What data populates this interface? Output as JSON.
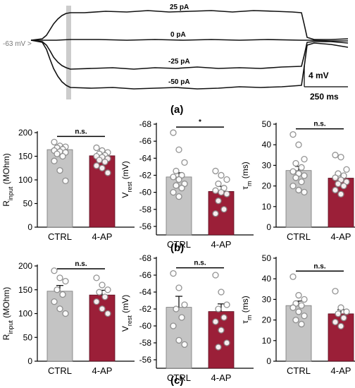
{
  "colors": {
    "ctrl_bar": "#c4c4c4",
    "ap_bar": "#9b1f38",
    "stim_band": "#cccccc"
  },
  "panel_a": {
    "label": "(a)",
    "baseline_label": "-63 mV >",
    "current_labels": [
      "25 pA",
      "0 pA",
      "-25 pA",
      "-50 pA"
    ],
    "scale_v_label": "4 mV",
    "scale_t_label": "250 ms"
  },
  "panel_b": {
    "label": "(b)"
  },
  "panel_c": {
    "label": "(c)"
  },
  "chart_data": [
    {
      "type": "bar",
      "id": "b1",
      "categories": [
        "CTRL",
        "4-AP"
      ],
      "values": [
        164,
        151
      ],
      "errors": [
        8,
        9
      ],
      "ylabel_main": "R",
      "ylabel_sub": "input",
      "ylabel_unit": " (MOhm)",
      "ylim": [
        0,
        200
      ],
      "yticks": [
        0,
        50,
        100,
        150,
        200
      ],
      "yinverted": false,
      "significance": "n.s.",
      "points": [
        [
          180,
          172,
          170,
          168,
          165,
          162,
          160,
          158,
          155,
          150,
          140,
          120,
          98
        ],
        [
          168,
          162,
          158,
          155,
          152,
          150,
          148,
          145,
          142,
          138,
          130,
          125,
          115
        ]
      ]
    },
    {
      "type": "bar",
      "id": "b2",
      "categories": [
        "CTRL",
        "4-AP"
      ],
      "values": [
        -61.8,
        -60.1
      ],
      "errors": [
        0.5,
        0.6
      ],
      "ylabel_main": "V",
      "ylabel_sub": "rest",
      "ylabel_unit": " (mV)",
      "ylim": [
        -55,
        -68
      ],
      "yticks": [
        -56,
        -58,
        -60,
        -62,
        -64,
        -66,
        -68
      ],
      "yinverted": true,
      "significance": "*",
      "points": [
        [
          -67,
          -65,
          -63.5,
          -62.5,
          -62,
          -61.8,
          -61.5,
          -61,
          -60.8,
          -60.5,
          -60,
          -59.5
        ],
        [
          -62.5,
          -62,
          -61.5,
          -61,
          -60.5,
          -60.2,
          -60,
          -59.8,
          -59,
          -58,
          -57.5
        ]
      ]
    },
    {
      "type": "bar",
      "id": "b3",
      "categories": [
        "CTRL",
        "4-AP"
      ],
      "values": [
        27.5,
        23.8
      ],
      "errors": [
        2,
        1.5
      ],
      "ylabel_main": "τ",
      "ylabel_sub": "m",
      "ylabel_unit": " (ms)",
      "ylim": [
        0,
        50
      ],
      "yticks": [
        0,
        10,
        20,
        30,
        40,
        50
      ],
      "yinverted": false,
      "significance": "n.s.",
      "points": [
        [
          45,
          40,
          33,
          31,
          29,
          27,
          26,
          25,
          24,
          22,
          20,
          18,
          17
        ],
        [
          35,
          34,
          28,
          26,
          25,
          24,
          23,
          22,
          21,
          20,
          18,
          16
        ]
      ]
    },
    {
      "type": "bar",
      "id": "c1",
      "categories": [
        "CTRL",
        "4-AP"
      ],
      "values": [
        147,
        139
      ],
      "errors": [
        12,
        10
      ],
      "ylabel_main": "R",
      "ylabel_sub": "input",
      "ylabel_unit": " (MOhm)",
      "ylim": [
        0,
        200
      ],
      "yticks": [
        0,
        50,
        100,
        150,
        200
      ],
      "yinverted": false,
      "significance": "n.s.",
      "points": [
        [
          190,
          175,
          168,
          150,
          140,
          125,
          110,
          100
        ],
        [
          175,
          160,
          150,
          145,
          135,
          125,
          110,
          100
        ]
      ]
    },
    {
      "type": "bar",
      "id": "c2",
      "categories": [
        "CTRL",
        "4-AP"
      ],
      "values": [
        -62.2,
        -61.7
      ],
      "errors": [
        1.3,
        0.9
      ],
      "ylabel_main": "V",
      "ylabel_sub": "rest",
      "ylabel_unit": " (mV)",
      "ylim": [
        -55,
        -68
      ],
      "yticks": [
        -56,
        -58,
        -60,
        -62,
        -64,
        -66,
        -68
      ],
      "yinverted": true,
      "significance": "n.s.",
      "points": [
        [
          -66.2,
          -64.5,
          -62.5,
          -62,
          -61,
          -60,
          -58.3,
          -57.8
        ],
        [
          -66,
          -64,
          -62.5,
          -62,
          -61,
          -60.5,
          -59.5,
          -58,
          -57.5
        ]
      ]
    },
    {
      "type": "bar",
      "id": "c3",
      "categories": [
        "CTRL",
        "4-AP"
      ],
      "values": [
        27,
        23
      ],
      "errors": [
        2.2,
        2
      ],
      "ylabel_main": "τ",
      "ylabel_sub": "m",
      "ylabel_unit": " (ms)",
      "ylim": [
        0,
        50
      ],
      "yticks": [
        0,
        10,
        20,
        30,
        40,
        50
      ],
      "yinverted": false,
      "significance": "n.s.",
      "points": [
        [
          41,
          32,
          30,
          28,
          27,
          26,
          24,
          22,
          20,
          18
        ],
        [
          34,
          26,
          24,
          23,
          21,
          19,
          17
        ]
      ]
    }
  ]
}
